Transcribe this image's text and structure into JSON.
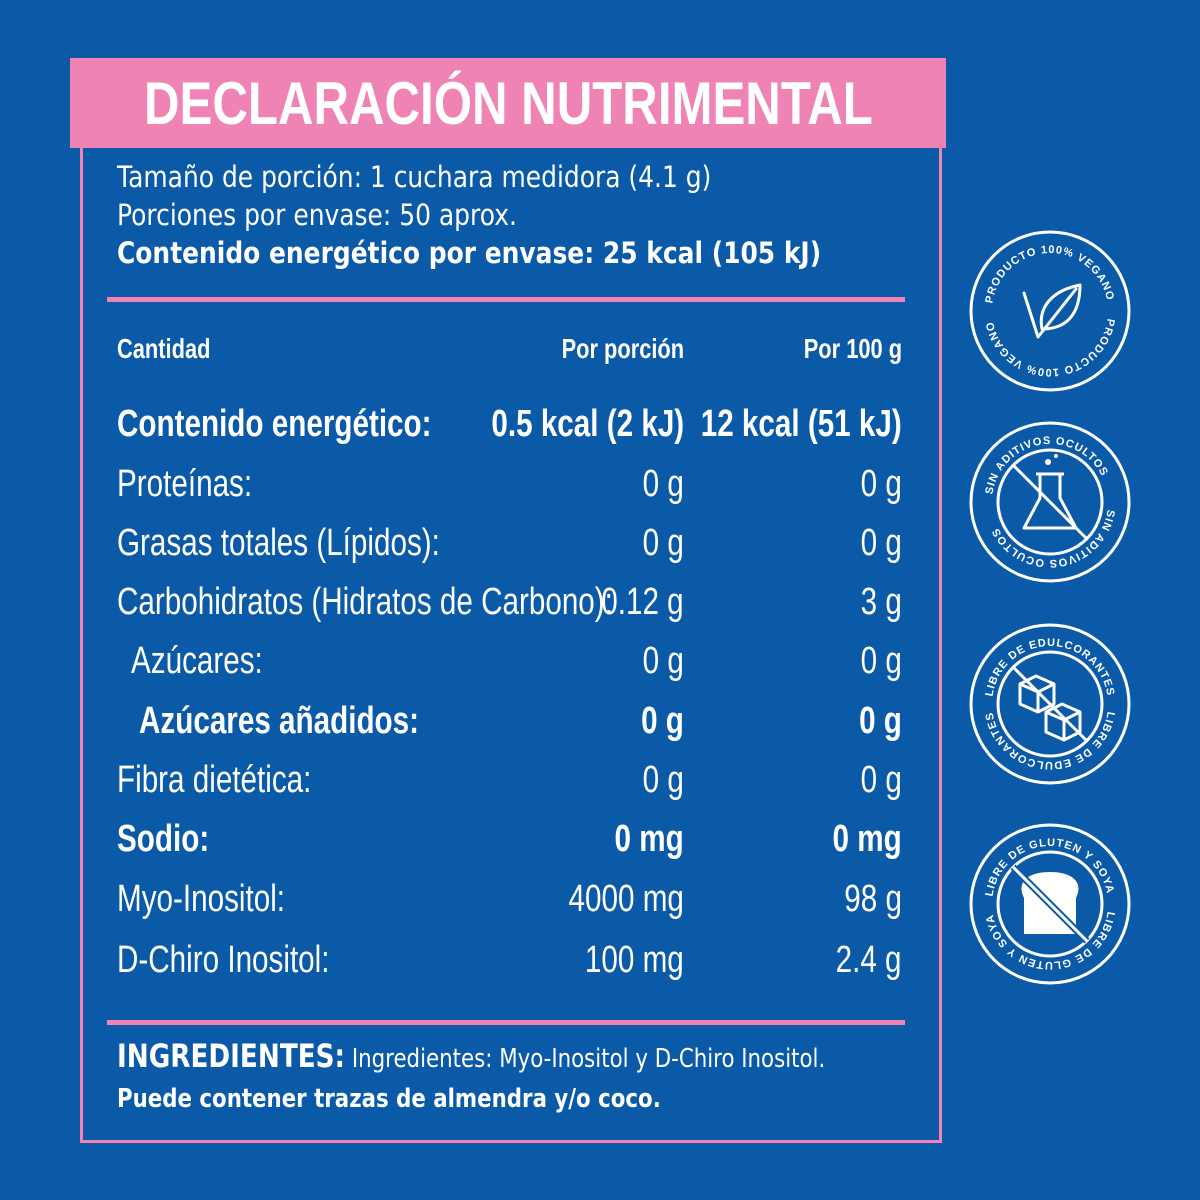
{
  "title": "DECLARACIÓN NUTRIMENTAL",
  "serving": {
    "size": "Tamaño de porción: 1 cuchara medidora (4.1 g)",
    "servings": "Porciones por envase: 50 aprox.",
    "energy": "Contenido energético por envase: 25 kcal (105 kJ)"
  },
  "table": {
    "headers": {
      "name": "Cantidad",
      "per_serving": "Por porción",
      "per_100g": "Por 100 g"
    },
    "rows": [
      {
        "name": "Contenido energético:",
        "per_serving": "0.5 kcal (2 kJ)",
        "per_100g": "12 kcal (51 kJ)"
      },
      {
        "name": "Proteínas:",
        "per_serving": "0 g",
        "per_100g": "0 g"
      },
      {
        "name": "Grasas totales (Lípidos):",
        "per_serving": "0 g",
        "per_100g": "0 g"
      },
      {
        "name": "Carbohidratos (Hidratos de Carbono):",
        "per_serving": "0.12 g",
        "per_100g": "3 g"
      },
      {
        "name": "Azúcares:",
        "per_serving": "0 g",
        "per_100g": "0 g"
      },
      {
        "name": "Azúcares añadidos:",
        "per_serving": "0 g",
        "per_100g": "0 g"
      },
      {
        "name": "Fibra dietética:",
        "per_serving": "0 g",
        "per_100g": "0 g"
      },
      {
        "name": "Sodio:",
        "per_serving": "0 mg",
        "per_100g": "0 mg"
      },
      {
        "name": "Myo-Inositol:",
        "per_serving": "4000 mg",
        "per_100g": "98 g"
      },
      {
        "name": "D-Chiro Inositol:",
        "per_serving": "100 mg",
        "per_100g": "2.4 g"
      }
    ]
  },
  "ingredients": {
    "label": "INGREDIENTES:",
    "text": "Ingredientes: Myo-Inositol y D-Chiro Inositol.",
    "warning": "Puede contener trazas de almendra y/o coco."
  },
  "badges": [
    {
      "text": "PRODUCTO 100% VEGANO",
      "icon": "leaf-check-icon"
    },
    {
      "text": "SIN ADITIVOS OCULTOS",
      "icon": "flask-crossed-icon"
    },
    {
      "text": "LIBRE DE EDULCORANTES",
      "icon": "sugar-cubes-crossed-icon"
    },
    {
      "text": "LIBRE DE GLUTEN Y SOYA",
      "icon": "bread-crossed-icon"
    }
  ],
  "colors": {
    "background": "#0a5aa8",
    "accent": "#ef83b4",
    "text": "#ffffff"
  }
}
